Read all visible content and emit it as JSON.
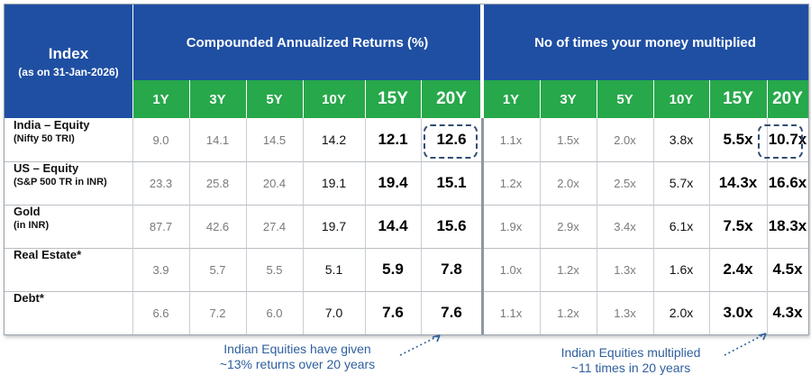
{
  "header": {
    "index_title": "Index",
    "index_subtitle": "(as on 31-Jan-2026)",
    "group_returns": "Compounded Annualized Returns (%)",
    "group_multiplied": "No of times your money multiplied"
  },
  "periods": [
    "1Y",
    "3Y",
    "5Y",
    "10Y",
    "15Y",
    "20Y"
  ],
  "rows": [
    {
      "name": "India – Equity",
      "sub": "(Nifty 50 TRI)",
      "returns": [
        "9.0",
        "14.1",
        "14.5",
        "14.2",
        "12.1",
        "12.6"
      ],
      "multiples": [
        "1.1x",
        "1.5x",
        "2.0x",
        "3.8x",
        "5.5x",
        "10.7x"
      ]
    },
    {
      "name": "US – Equity",
      "sub": "(S&P 500 TR in INR)",
      "returns": [
        "23.3",
        "25.8",
        "20.4",
        "19.1",
        "19.4",
        "15.1"
      ],
      "multiples": [
        "1.2x",
        "2.0x",
        "2.5x",
        "5.7x",
        "14.3x",
        "16.6x"
      ]
    },
    {
      "name": "Gold",
      "sub": "(in INR)",
      "returns": [
        "87.7",
        "42.6",
        "27.4",
        "19.7",
        "14.4",
        "15.6"
      ],
      "multiples": [
        "1.9x",
        "2.9x",
        "3.4x",
        "6.1x",
        "7.5x",
        "18.3x"
      ]
    },
    {
      "name": "Real Estate*",
      "sub": "",
      "returns": [
        "3.9",
        "5.7",
        "5.5",
        "5.1",
        "5.9",
        "7.8"
      ],
      "multiples": [
        "1.0x",
        "1.2x",
        "1.3x",
        "1.6x",
        "2.4x",
        "4.5x"
      ]
    },
    {
      "name": "Debt*",
      "sub": "",
      "returns": [
        "6.6",
        "7.2",
        "6.0",
        "7.0",
        "7.6",
        "7.6"
      ],
      "multiples": [
        "1.1x",
        "1.2x",
        "1.3x",
        "2.0x",
        "3.0x",
        "4.3x"
      ]
    }
  ],
  "notes": {
    "left": [
      "Indian Equities have given",
      "~13% returns over 20 years"
    ],
    "right": [
      "Indian Equities multiplied",
      "~11 times in 20 years"
    ]
  },
  "colors": {
    "header_blue": "#1f4fa3",
    "period_green": "#27a84a",
    "note_blue": "#2f5f9e",
    "highlight_border": "#2f4e72"
  }
}
